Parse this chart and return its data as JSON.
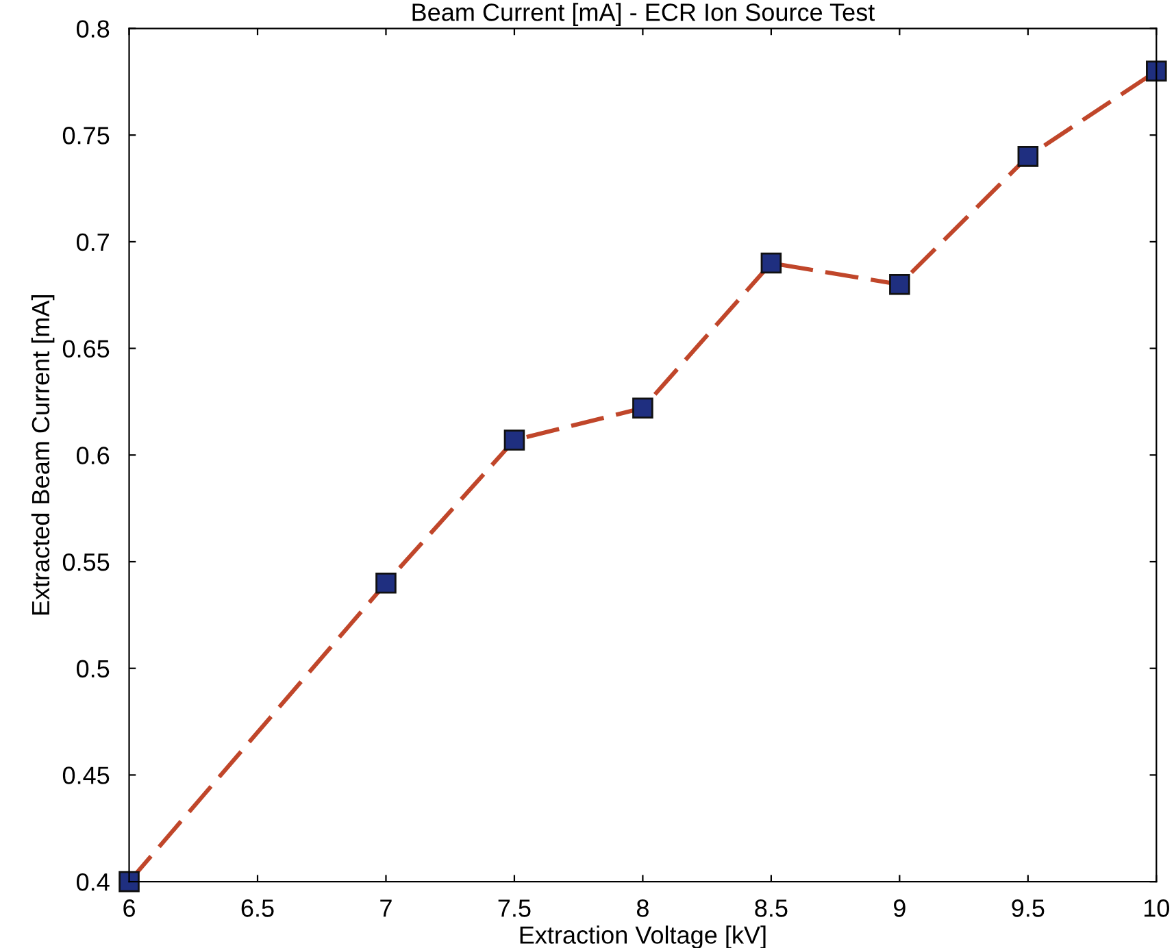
{
  "chart_data": {
    "type": "line",
    "title": "Beam Current [mA] - ECR Ion Source Test",
    "xlabel": "Extraction Voltage [kV]",
    "ylabel": "Extracted Beam Current [mA]",
    "x": [
      6,
      7,
      7.5,
      8,
      8.5,
      9,
      9.5,
      10
    ],
    "series": [
      {
        "color": "#c0462a",
        "values": [
          0.4,
          0.54,
          0.607,
          0.622,
          0.69,
          0.68,
          0.74,
          0.78
        ]
      }
    ],
    "marker": "square",
    "line_style": "dashed",
    "grid": false,
    "legend": false,
    "xlim": [
      6,
      10
    ],
    "ylim": [
      0.4,
      0.8
    ],
    "xticks": [
      6,
      6.5,
      7,
      7.5,
      8,
      8.5,
      9,
      9.5,
      10
    ],
    "yticks": [
      0.4,
      0.45,
      0.5,
      0.55,
      0.6,
      0.65,
      0.7,
      0.75,
      0.8
    ]
  }
}
